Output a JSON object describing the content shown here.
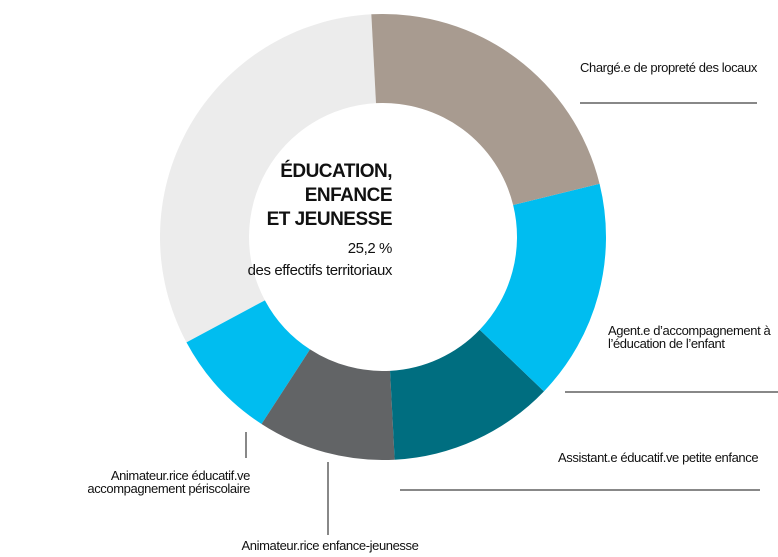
{
  "chart_data": {
    "type": "donut",
    "title": [
      "ÉDUCATION,",
      "ENFANCE",
      "ET JEUNESSE"
    ],
    "subtitle": [
      "25,2 %",
      "des effectifs territoriaux"
    ],
    "categories": [
      "Chargé.e de propreté des locaux",
      "Agent.e d’accompagnement à l’éducation de l’enfant",
      "Assistant.e éducatif.ve petite enfance",
      "Animateur.rice enfance-jeunesse",
      "Animateur.rice éducatif.ve accompagnement périscolaire",
      null
    ],
    "values": [
      22,
      16,
      12,
      10,
      8,
      32
    ],
    "colors": [
      "#a89b90",
      "#00bdf0",
      "#006e80",
      "#626466",
      "#00bdf0",
      "#ececec"
    ]
  }
}
